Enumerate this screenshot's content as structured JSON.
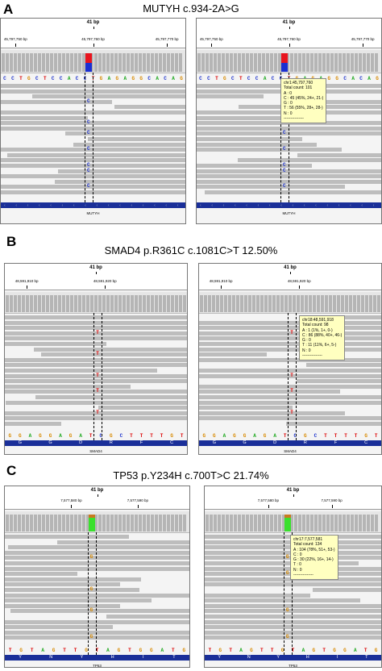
{
  "panels": [
    {
      "letter": "A",
      "title": "MUTYH c.934-2A>G",
      "bp": "41 bp",
      "ticks": [
        "45,797,750 bp",
        "45,797,760 bp",
        "45,797,770 bp"
      ],
      "gene": "MUTYH",
      "seq": [
        "C",
        "C",
        "T",
        "G",
        "C",
        "T",
        "C",
        "C",
        "A",
        "C",
        "C",
        "T",
        "G",
        "A",
        "G",
        "A",
        "G",
        "G",
        "C",
        "A",
        "C",
        "A",
        "G"
      ],
      "alt_base": "C",
      "popup": [
        "chr1:45,797,760",
        "Total count: 101",
        "A : 0",
        "C : 45 (45%, 24+, 21-)",
        "G : 0",
        "T : 56 (55%, 28+, 28-)",
        "N : 0",
        "---------------"
      ]
    },
    {
      "letter": "B",
      "title": "SMAD4 p.R361C c.1081C>T 12.50%",
      "bp": "41 bp",
      "ticks": [
        "48,591,910 bp",
        "48,591,920 bp"
      ],
      "gene": "SMAD4",
      "seq": [
        "G",
        "G",
        "A",
        "G",
        "G",
        "A",
        "G",
        "A",
        "T",
        "C",
        "G",
        "C",
        "T",
        "T",
        "T",
        "T",
        "G",
        "T"
      ],
      "aa": [
        "G",
        "G",
        "D",
        "R",
        "F",
        "C"
      ],
      "alt_base": "T",
      "popup": [
        "chr18:48,591,918",
        "Total count: 98",
        "A : 1 (1%, 1+, 0-)",
        "C : 86 (88%, 40+, 46-)",
        "G : 0",
        "T : 11 (11%, 6+, 5-)",
        "N : 0",
        "---------------"
      ]
    },
    {
      "letter": "C",
      "title": "TP53 p.Y234H c.700T>C 21.74%",
      "bp": "41 bp",
      "ticks": [
        "7,577,580 bp",
        "7,577,590 bp"
      ],
      "gene": "TP53",
      "seq": [
        "T",
        "G",
        "T",
        "A",
        "G",
        "T",
        "T",
        "G",
        "T",
        "A",
        "G",
        "T",
        "G",
        "G",
        "A",
        "T",
        "G"
      ],
      "aa": [
        "Y",
        "N",
        "Y",
        "H",
        "I",
        "T"
      ],
      "alt_base": "G",
      "popup": [
        "chr17:7,577,581",
        "Total count: 134",
        "A : 104 (78%, 51+, 53-)",
        "C : 0",
        "G : 30 (22%, 16+, 14-)",
        "T : 0",
        "N : 0",
        "---------------"
      ]
    }
  ],
  "colors": {
    "A": "#22aa22",
    "C": "#1a2fcc",
    "G": "#d88a00",
    "T": "#dd0000",
    "gene": "#1a2f99",
    "popup": "#ffffc0"
  }
}
